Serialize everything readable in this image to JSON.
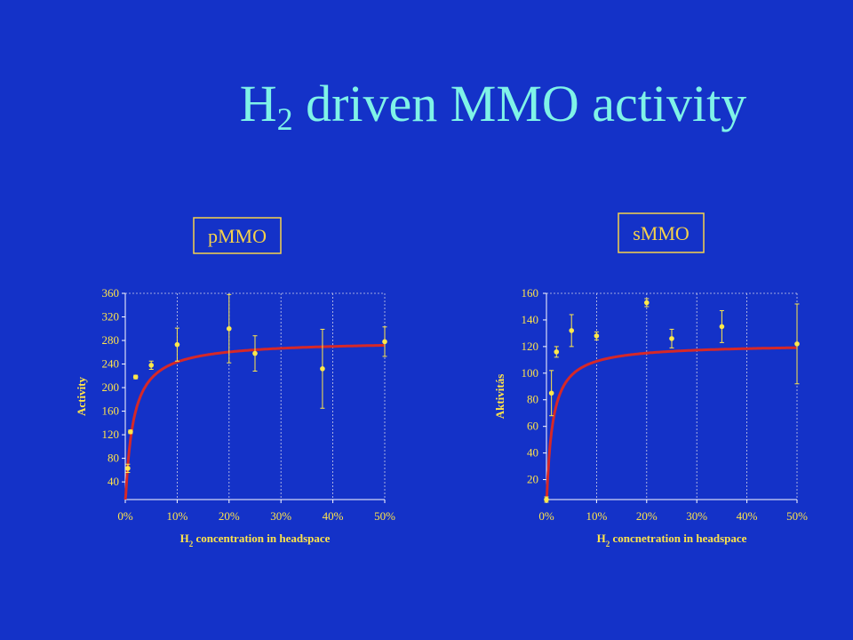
{
  "title": {
    "main": "H",
    "sub": "2",
    "rest": " driven MMO activity"
  },
  "colors": {
    "background": "#1432c8",
    "title": "#7ff3e8",
    "text": "#ffe44a",
    "fit": "#d62828",
    "points": "#ffe84a"
  },
  "chart_data": [
    {
      "type": "scatter",
      "panel_label": "pMMO",
      "ylabel": "Activity",
      "xlabel_main": "H",
      "xlabel_sub": "2",
      "xlabel_rest": " concentration in headspace",
      "xlim": [
        0,
        50
      ],
      "ylim": [
        10,
        360
      ],
      "xticks": [
        0,
        10,
        20,
        30,
        40,
        50
      ],
      "xtick_labels": [
        "0%",
        "10%",
        "20%",
        "30%",
        "40%",
        "50%"
      ],
      "yticks": [
        40,
        80,
        120,
        160,
        200,
        240,
        280,
        320,
        360
      ],
      "ytick_labels": [
        "40",
        "80",
        "120",
        "160",
        "200",
        "240",
        "280",
        "320",
        "360"
      ],
      "grid": true,
      "points": [
        {
          "x": 0.5,
          "y": 63,
          "err": 7
        },
        {
          "x": 1,
          "y": 125,
          "err": 3
        },
        {
          "x": 2,
          "y": 218,
          "err": 3
        },
        {
          "x": 5,
          "y": 238,
          "err": 7
        },
        {
          "x": 10,
          "y": 273,
          "err": 28
        },
        {
          "x": 20,
          "y": 300,
          "err": 58
        },
        {
          "x": 25,
          "y": 258,
          "err": 30
        },
        {
          "x": 38,
          "y": 232,
          "err": 67
        },
        {
          "x": 50,
          "y": 278,
          "err": 25
        }
      ],
      "fit": {
        "name": "",
        "vmax": 280,
        "k": 1.5
      }
    },
    {
      "type": "scatter",
      "panel_label": "sMMO",
      "ylabel": "Aktivitás",
      "xlabel_main": "H",
      "xlabel_sub": "2",
      "xlabel_rest": " concnetration in headspace",
      "xlim": [
        0,
        50
      ],
      "ylim": [
        5,
        160
      ],
      "xticks": [
        0,
        10,
        20,
        30,
        40,
        50
      ],
      "xtick_labels": [
        "0%",
        "10%",
        "20%",
        "30%",
        "40%",
        "50%"
      ],
      "yticks": [
        20,
        40,
        60,
        80,
        100,
        120,
        140,
        160
      ],
      "ytick_labels": [
        "20",
        "40",
        "60",
        "80",
        "100",
        "120",
        "140",
        "160"
      ],
      "grid": true,
      "points": [
        {
          "x": 0,
          "y": 5,
          "err": 2
        },
        {
          "x": 1,
          "y": 85,
          "err": 17
        },
        {
          "x": 2,
          "y": 116,
          "err": 4
        },
        {
          "x": 5,
          "y": 132,
          "err": 12
        },
        {
          "x": 10,
          "y": 128,
          "err": 3
        },
        {
          "x": 20,
          "y": 153,
          "err": 3
        },
        {
          "x": 25,
          "y": 126,
          "err": 7
        },
        {
          "x": 35,
          "y": 135,
          "err": 12
        },
        {
          "x": 50,
          "y": 122,
          "err": 30
        }
      ],
      "fit": {
        "name": "",
        "vmax": 122,
        "k": 1.2
      }
    }
  ]
}
